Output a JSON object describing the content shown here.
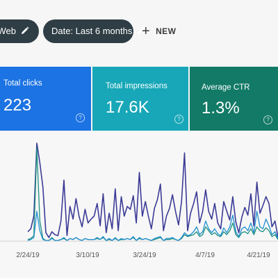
{
  "filters": {
    "type_chip_label": "e: Web",
    "date_chip_label": "Date: Last 6 months",
    "new_button_label": "NEW"
  },
  "metrics": {
    "clicks": {
      "label": "Total clicks",
      "value": "223",
      "color": "#1c73e3"
    },
    "impressions": {
      "label": "Total impressions",
      "value": "17.6K",
      "color": "#17a7b8"
    },
    "ctr": {
      "label": "Average CTR",
      "value": "1.3%",
      "color": "#127a66"
    }
  },
  "icons": {
    "edit": "pencil-icon",
    "add": "plus-icon",
    "help": "question-circle-icon"
  },
  "chart_data": {
    "type": "line",
    "x_tick_labels": [
      "2/24/19",
      "3/10/19",
      "3/24/19",
      "4/7/19",
      "4/21/19"
    ],
    "y_axis_labels_visible": false,
    "grid": false,
    "series": [
      {
        "color": "#3b3a96",
        "values": [
          9,
          12,
          25,
          100,
          80,
          55,
          8,
          3,
          9,
          6,
          5,
          20,
          62,
          5,
          35,
          22,
          43,
          25,
          14,
          32,
          18,
          22,
          25,
          38,
          15,
          48,
          8,
          28,
          12,
          53,
          10,
          45,
          25,
          35,
          32,
          46,
          18,
          70,
          25,
          40,
          25,
          12,
          33,
          42,
          58,
          10,
          25,
          33,
          47,
          30,
          16,
          40,
          90,
          10,
          28,
          38,
          50,
          18,
          30,
          52,
          30,
          22,
          38,
          18,
          12,
          40,
          30,
          21,
          45,
          19,
          8,
          24,
          34,
          26,
          48,
          15,
          60,
          28,
          36,
          45,
          38,
          14,
          20,
          3
        ]
      },
      {
        "color": "#1e8f80",
        "values": [
          1,
          2,
          5,
          95,
          20,
          2,
          0,
          0,
          3,
          0,
          0,
          1,
          2,
          0,
          2,
          1,
          3,
          1,
          0,
          2,
          1,
          1,
          1,
          2,
          1,
          3,
          0,
          1,
          0,
          2,
          0,
          1,
          1,
          2,
          1,
          3,
          0,
          2,
          1,
          2,
          1,
          0,
          1,
          2,
          3,
          0,
          1,
          1,
          2,
          1,
          0,
          2,
          6,
          4,
          5,
          6,
          9,
          4,
          6,
          14,
          10,
          6,
          8,
          5,
          4,
          9,
          6,
          10,
          18,
          6,
          3,
          8,
          9,
          7,
          12,
          6,
          14,
          10,
          9,
          13,
          10,
          4,
          6,
          1
        ]
      },
      {
        "color": "#1f8fd0",
        "values": [
          0,
          1,
          3,
          30,
          10,
          1,
          0,
          0,
          2,
          0,
          0,
          1,
          3,
          0,
          2,
          1,
          3,
          1,
          0,
          2,
          1,
          1,
          1,
          3,
          1,
          4,
          0,
          2,
          0,
          3,
          0,
          2,
          1,
          2,
          1,
          4,
          0,
          3,
          1,
          2,
          1,
          0,
          2,
          3,
          4,
          0,
          2,
          2,
          3,
          1,
          0,
          3,
          8,
          5,
          6,
          9,
          14,
          6,
          9,
          20,
          12,
          8,
          12,
          7,
          5,
          13,
          8,
          14,
          26,
          9,
          4,
          12,
          14,
          10,
          18,
          8,
          30,
          14,
          12,
          22,
          15,
          6,
          9,
          2
        ]
      }
    ]
  }
}
